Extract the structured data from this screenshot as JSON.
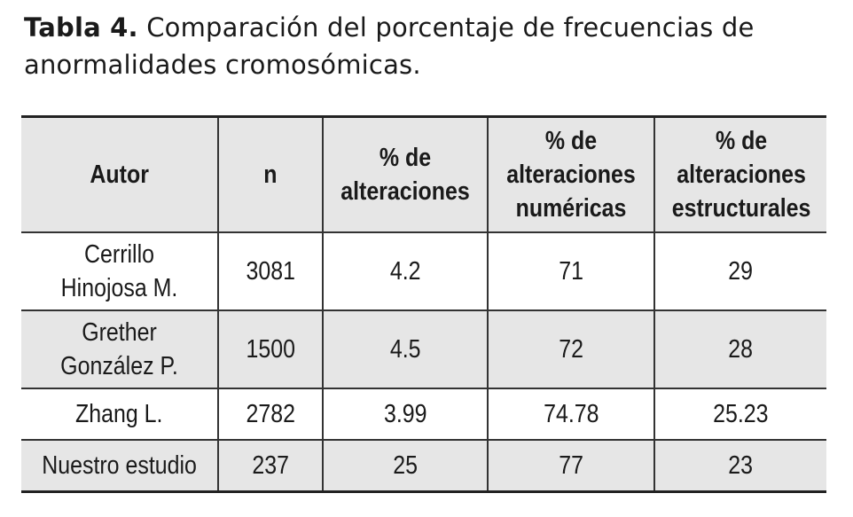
{
  "caption": {
    "label": "Tabla 4.",
    "text": "Comparación del porcentaje de frecuencias de anormalidades cromosómicas."
  },
  "table": {
    "headers": [
      "Autor",
      "n",
      "% de alteraciones",
      "% de alteraciones numéricas",
      "% de alteraciones estructurales"
    ],
    "rows": [
      [
        "Cerrillo Hinojosa M.",
        "3081",
        "4.2",
        "71",
        "29"
      ],
      [
        "Grether González P.",
        "1500",
        "4.5",
        "72",
        "28"
      ],
      [
        "Zhang L.",
        "2782",
        "3.99",
        "74.78",
        "25.23"
      ],
      [
        "Nuestro estudio",
        "237",
        "25",
        "77",
        "23"
      ]
    ]
  }
}
